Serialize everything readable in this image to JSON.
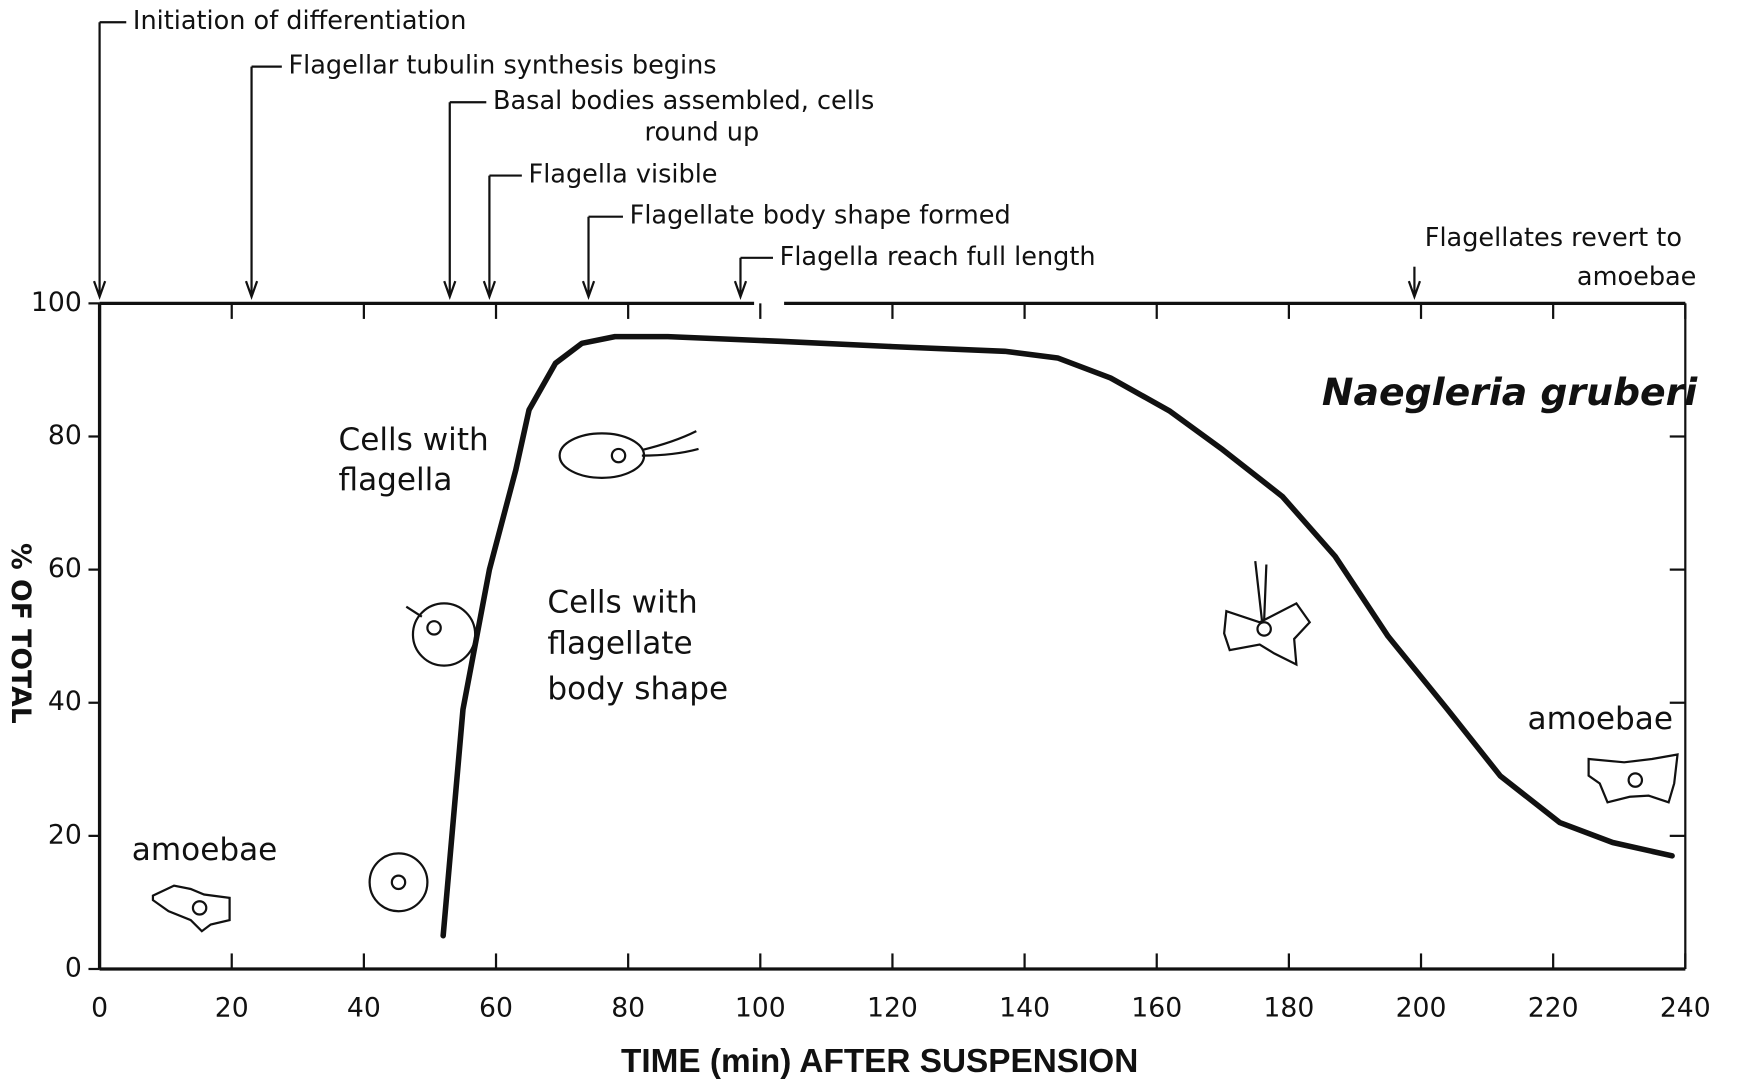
{
  "chart_data": {
    "type": "line",
    "xlabel": "TIME (min) AFTER SUSPENSION",
    "ylabel": "% OF TOTAL",
    "species": "Naegleria gruberi",
    "x": [
      52,
      55,
      59,
      63,
      65,
      69,
      73,
      78,
      86,
      103,
      120,
      137,
      145,
      153,
      162,
      170,
      179,
      187,
      195,
      204,
      212,
      221,
      229,
      238
    ],
    "values": [
      5,
      39,
      60,
      75,
      84,
      91,
      94,
      95,
      95,
      94.3,
      93.5,
      92.8,
      91.8,
      88.8,
      83.8,
      78,
      71,
      62,
      50,
      39,
      29,
      22,
      19,
      17
    ],
    "color": "#111111",
    "xlim": [
      0,
      240
    ],
    "ylim": [
      0,
      100
    ],
    "xticks": [
      0,
      20,
      40,
      60,
      80,
      100,
      120,
      140,
      160,
      180,
      200,
      220,
      240
    ],
    "yticks": [
      0,
      20,
      40,
      60,
      80,
      100
    ],
    "annotations": [
      {
        "x": 0,
        "text": [
          "Initiation of differentiation"
        ]
      },
      {
        "x": 23,
        "text": [
          "Flagellar tubulin synthesis begins"
        ]
      },
      {
        "x": 53,
        "text": [
          "Basal bodies assembled, cells",
          "round up"
        ]
      },
      {
        "x": 59,
        "text": [
          "Flagella visible"
        ]
      },
      {
        "x": 74,
        "text": [
          "Flagellate body shape formed"
        ]
      },
      {
        "x": 97,
        "text": [
          "Flagella reach full length"
        ]
      },
      {
        "x": 199,
        "text": [
          "Flagellates revert to",
          "amoebae"
        ]
      }
    ],
    "labels": [
      [
        "Cells with",
        "flagella"
      ],
      [
        "Cells with",
        "flagellate",
        "body shape"
      ],
      [
        "amoebae"
      ],
      [
        "amoebae"
      ]
    ]
  }
}
